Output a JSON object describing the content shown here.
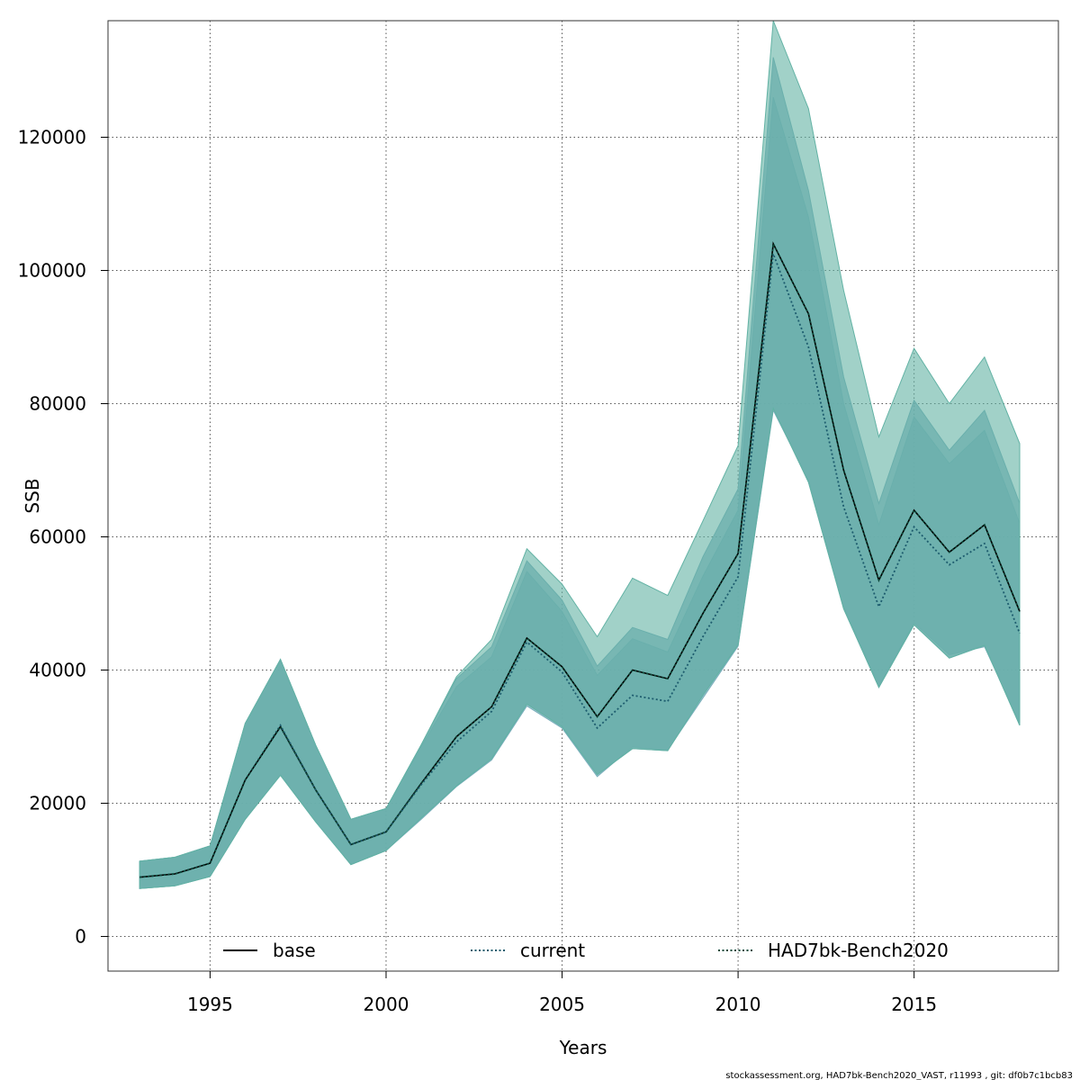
{
  "chart_data": {
    "type": "line",
    "xlabel": "Years",
    "ylabel": "SSB",
    "xlim": [
      1992.1,
      2019.1
    ],
    "ylim": [
      -5200,
      137500
    ],
    "xticks": [
      1995,
      2000,
      2005,
      2010,
      2015
    ],
    "yticks": [
      0,
      20000,
      40000,
      60000,
      80000,
      100000,
      120000
    ],
    "grid": true,
    "legend_position": "bottom",
    "x": [
      1993,
      1994,
      1995,
      1996,
      1997,
      1998,
      1999,
      2000,
      2001,
      2002,
      2003,
      2004,
      2005,
      2006,
      2007,
      2008,
      2009,
      2010,
      2011,
      2012,
      2013,
      2014,
      2015,
      2016,
      2017,
      2018
    ],
    "series": [
      {
        "name": "base",
        "line_style": "solid",
        "line_color": "#000000",
        "band_color": "#76aab9",
        "values": [
          8900,
          9400,
          11000,
          23500,
          31500,
          22000,
          13800,
          15700,
          23000,
          30000,
          34500,
          44800,
          40500,
          33000,
          40000,
          38700,
          48500,
          57500,
          104000,
          93500,
          70000,
          53500,
          64000,
          57700,
          61800,
          48800
        ],
        "lower": [
          7200,
          7600,
          9000,
          17600,
          24200,
          17200,
          10800,
          12900,
          17800,
          22600,
          26700,
          34900,
          31500,
          24300,
          28200,
          27900,
          36200,
          43800,
          79300,
          68200,
          49200,
          37400,
          46800,
          41800,
          43700,
          31700
        ],
        "upper": [
          11300,
          11900,
          13600,
          32000,
          41600,
          28700,
          17600,
          19200,
          28800,
          38700,
          43500,
          56400,
          50500,
          40600,
          46400,
          44600,
          57000,
          67200,
          132000,
          112000,
          84000,
          65000,
          80500,
          73000,
          79000,
          65000
        ]
      },
      {
        "name": "current",
        "line_style": "dotted",
        "line_color": "#1d5c6e",
        "band_color": "#79aebb",
        "values": [
          8900,
          9400,
          11000,
          23500,
          31700,
          22000,
          13800,
          15700,
          22800,
          29200,
          33800,
          44200,
          39700,
          31300,
          36200,
          35300,
          45000,
          54000,
          102500,
          88500,
          64500,
          49500,
          61500,
          55800,
          59000,
          45500
        ],
        "lower": [
          7200,
          7600,
          9000,
          17600,
          24300,
          17200,
          10800,
          12900,
          17600,
          22500,
          26500,
          34600,
          31300,
          24000,
          28500,
          28000,
          35800,
          43600,
          79000,
          68500,
          49500,
          37600,
          47100,
          42300,
          43500,
          32000
        ],
        "upper": [
          11300,
          11900,
          13600,
          32000,
          41600,
          28700,
          17600,
          19200,
          28500,
          37500,
          42000,
          54800,
          48800,
          39200,
          44700,
          42700,
          54100,
          64000,
          126000,
          108000,
          80000,
          61800,
          78000,
          71000,
          76000,
          62000
        ]
      },
      {
        "name": "HAD7bk-Bench2020",
        "line_style": "dotted",
        "line_color": "#0e4a3a",
        "band_color": "#62b2a4",
        "values": [
          8900,
          9400,
          11000,
          23500,
          31500,
          22000,
          13800,
          15700,
          23000,
          30000,
          34500,
          44800,
          40500,
          33000,
          40000,
          38700,
          48500,
          57500,
          104000,
          93500,
          70000,
          53500,
          64000,
          57700,
          61800,
          48800
        ],
        "lower": [
          7200,
          7600,
          9000,
          17600,
          24200,
          17200,
          10800,
          12900,
          17800,
          22600,
          26700,
          34900,
          31500,
          24300,
          28200,
          27900,
          36200,
          43800,
          79300,
          68200,
          49200,
          37400,
          46800,
          41800,
          43700,
          31700
        ],
        "upper": [
          11300,
          11900,
          13600,
          32000,
          41600,
          28700,
          17600,
          19200,
          28800,
          39000,
          44600,
          58200,
          52900,
          45000,
          53800,
          51200,
          62400,
          73700,
          137500,
          124300,
          97000,
          75000,
          88300,
          80000,
          87000,
          74000
        ]
      }
    ]
  },
  "footer_text": "stockassessment.org, HAD7bk-Bench2020_VAST, r11993 , git: df0b7c1bcb83"
}
